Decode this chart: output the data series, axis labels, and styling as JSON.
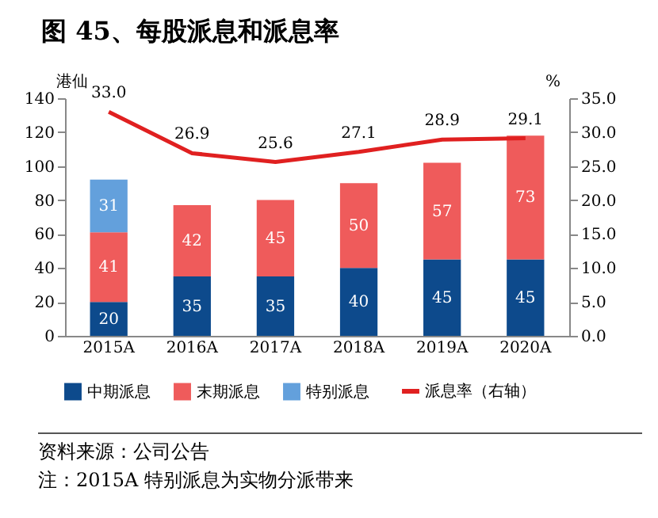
{
  "chart_data": {
    "type": "bar",
    "title": "图 45、每股派息和派息率",
    "ylabel": "港仙",
    "y2label": "%",
    "stacked": true,
    "categories": [
      "2015A",
      "2016A",
      "2017A",
      "2018A",
      "2019A",
      "2020A"
    ],
    "series": [
      {
        "name": "中期派息",
        "color": "#0d4a8c",
        "values": [
          20,
          35,
          35,
          40,
          45,
          45
        ],
        "value_labels": [
          "20",
          "35",
          "35",
          "40",
          "45",
          "45"
        ]
      },
      {
        "name": "末期派息",
        "color": "#ef5b5b",
        "values": [
          41,
          42,
          45,
          50,
          57,
          73
        ],
        "value_labels": [
          "41",
          "42",
          "45",
          "50",
          "57",
          "73"
        ]
      },
      {
        "name": "特别派息",
        "color": "#63a0dc",
        "values": [
          31,
          null,
          null,
          null,
          null,
          null
        ],
        "value_labels": [
          "31",
          null,
          null,
          null,
          null,
          null
        ]
      },
      {
        "name": "派息率（右轴）",
        "type": "line",
        "axis": "y2",
        "color": "#e02020",
        "values": [
          33.0,
          26.9,
          25.6,
          27.1,
          28.9,
          29.1
        ],
        "value_labels": [
          "33.0",
          "26.9",
          "25.6",
          "27.1",
          "28.9",
          "29.1"
        ]
      }
    ],
    "ylim": [
      0,
      140
    ],
    "yticks": [
      0,
      20,
      40,
      60,
      80,
      100,
      120,
      140
    ],
    "y2lim": [
      0,
      35
    ],
    "y2ticks": [
      {
        "value": 0,
        "label": "0.0"
      },
      {
        "value": 5,
        "label": "5.0"
      },
      {
        "value": 10,
        "label": "10.0"
      },
      {
        "value": 15,
        "label": "15.0"
      },
      {
        "value": 20,
        "label": "20.0"
      },
      {
        "value": 25,
        "label": "25.0"
      },
      {
        "value": 30,
        "label": "30.0"
      },
      {
        "value": 35,
        "label": "35.0"
      }
    ],
    "grid": false,
    "legend": "bottom",
    "marker": "none",
    "line_style": "solid",
    "annotations": [
      "资料来源：公司公告",
      "注：2015A 特别派息为实物分派带来"
    ]
  }
}
